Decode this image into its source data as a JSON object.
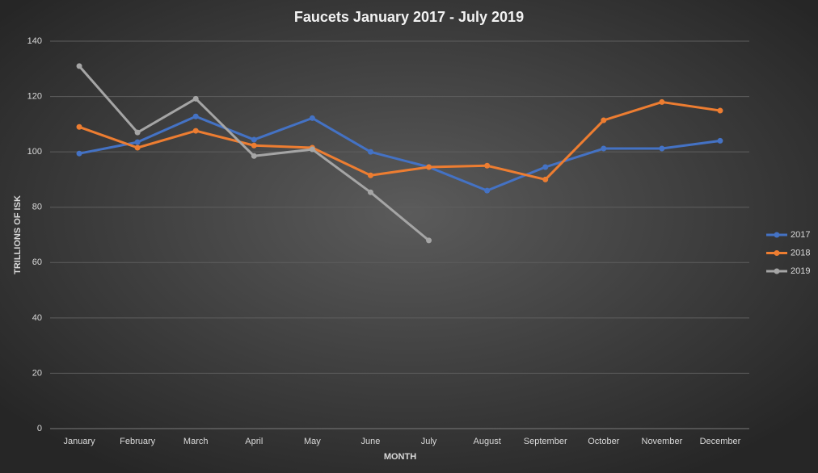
{
  "chart_data": {
    "type": "line",
    "title": "Faucets January 2017 - July 2019",
    "x_label": "MONTH",
    "y_label": "TRILLIONS OF ISK",
    "categories": [
      "January",
      "February",
      "March",
      "April",
      "May",
      "June",
      "July",
      "August",
      "September",
      "October",
      "November",
      "December"
    ],
    "series": [
      {
        "name": "2017",
        "color": "#4472c4",
        "values": [
          99.4,
          103.5,
          112.8,
          104.4,
          112.2,
          100,
          94.5,
          86,
          94.5,
          101.2,
          101.2,
          104
        ]
      },
      {
        "name": "2018",
        "color": "#ed7d31",
        "values": [
          109,
          101.5,
          107.6,
          102.3,
          101.5,
          91.5,
          94.5,
          95,
          90,
          111.4,
          118,
          114.9
        ]
      },
      {
        "name": "2019",
        "color": "#a5a5a5",
        "values": [
          131,
          107,
          119.2,
          98.5,
          100.9,
          85.4,
          68,
          null,
          null,
          null,
          null,
          null
        ]
      }
    ],
    "ylim": [
      0,
      140
    ],
    "yticks": [
      0,
      20,
      40,
      60,
      80,
      100,
      120,
      140
    ],
    "grid": true,
    "legend": "right"
  }
}
